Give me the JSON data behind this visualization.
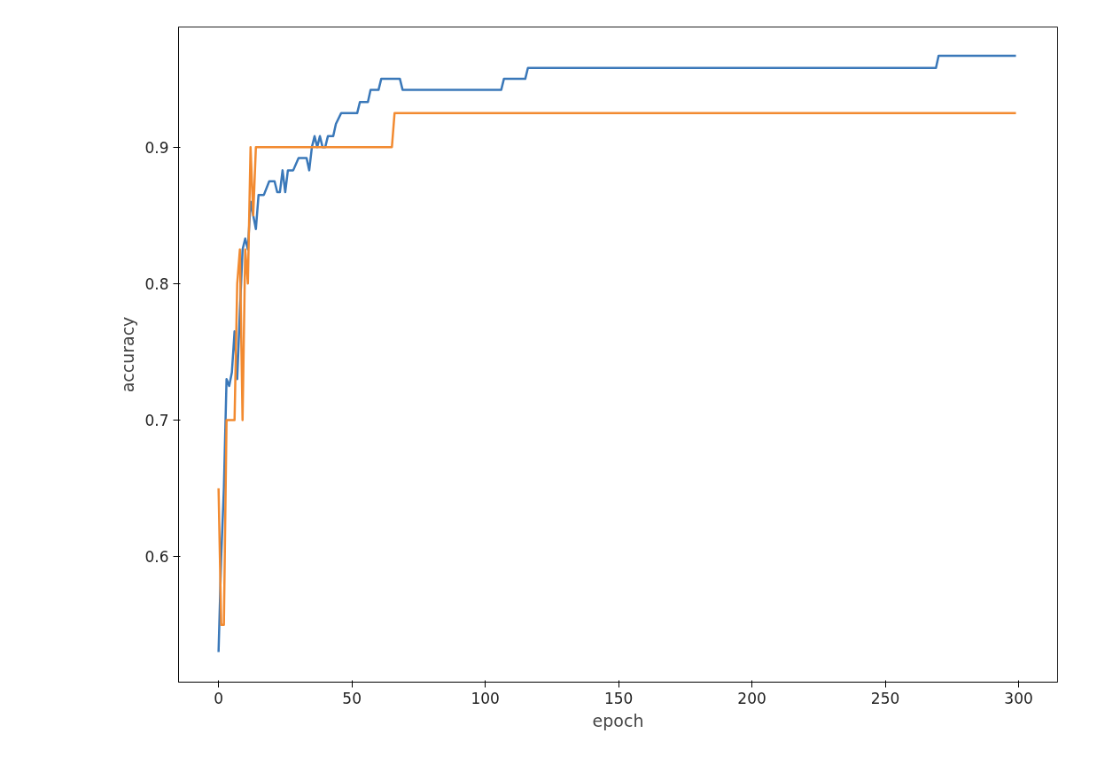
{
  "chart_data": {
    "type": "line",
    "xlabel": "epoch",
    "ylabel": "accuracy",
    "xlim": [
      -15,
      314.6
    ],
    "ylim": [
      0.508,
      0.988
    ],
    "xticks": [
      0,
      50,
      100,
      150,
      200,
      250,
      300
    ],
    "yticks": [
      0.6,
      0.7,
      0.8,
      0.9
    ],
    "grid": false,
    "line_style": "solid",
    "series": [
      {
        "color": "#3a78b9",
        "x": [
          0,
          1,
          2,
          3,
          4,
          5,
          6,
          7,
          8,
          9,
          10,
          11,
          12,
          13,
          14,
          15,
          17,
          19,
          21,
          22,
          23,
          24,
          25,
          26,
          28,
          30,
          33,
          34,
          35,
          36,
          37,
          38,
          39,
          40,
          41,
          43,
          44,
          46,
          52,
          53,
          56,
          57,
          60,
          61,
          68,
          69,
          106,
          107,
          115,
          116,
          269,
          270,
          299
        ],
        "values": [
          0.53,
          0.6,
          0.65,
          0.73,
          0.725,
          0.735,
          0.765,
          0.73,
          0.78,
          0.825,
          0.833,
          0.825,
          0.86,
          0.85,
          0.84,
          0.865,
          0.865,
          0.875,
          0.875,
          0.867,
          0.867,
          0.883,
          0.867,
          0.883,
          0.883,
          0.892,
          0.892,
          0.883,
          0.9,
          0.908,
          0.9,
          0.908,
          0.9,
          0.9,
          0.908,
          0.908,
          0.917,
          0.925,
          0.925,
          0.933,
          0.933,
          0.942,
          0.942,
          0.95,
          0.95,
          0.942,
          0.942,
          0.95,
          0.95,
          0.958,
          0.958,
          0.967,
          0.967
        ]
      },
      {
        "color": "#f28a30",
        "x": [
          0,
          1,
          2,
          3,
          5,
          6,
          7,
          8,
          9,
          10,
          11,
          12,
          13,
          14,
          15,
          65,
          66,
          299
        ],
        "values": [
          0.65,
          0.55,
          0.55,
          0.7,
          0.7,
          0.7,
          0.8,
          0.825,
          0.7,
          0.825,
          0.8,
          0.9,
          0.85,
          0.9,
          0.9,
          0.9,
          0.925,
          0.925
        ]
      }
    ]
  }
}
